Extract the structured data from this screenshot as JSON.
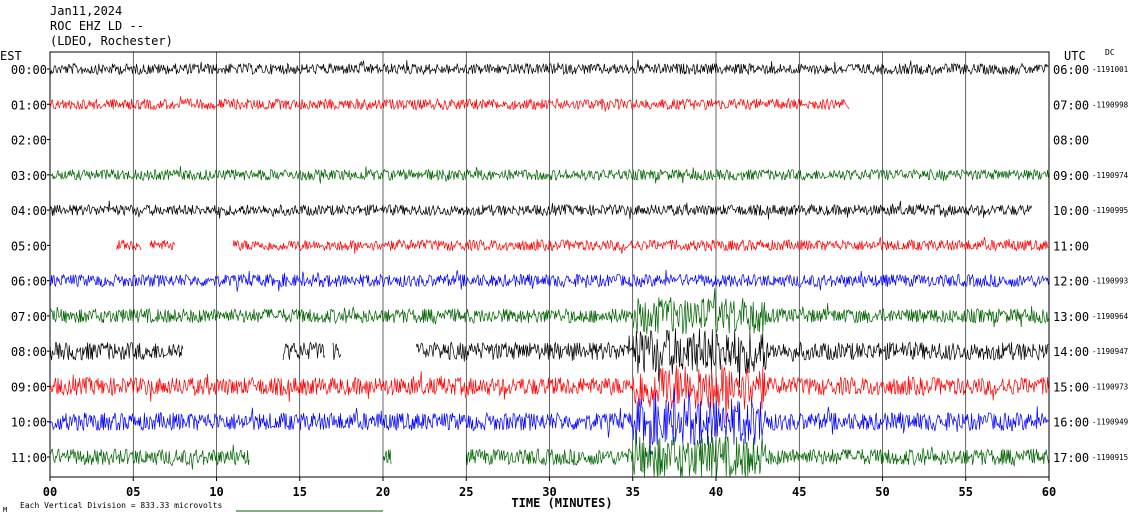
{
  "header": {
    "date": "Jan11,2024",
    "station": "ROC EHZ LD --",
    "network": "(LDEO, Rochester)"
  },
  "left_axis_label": "EST",
  "right_axis_label": "UTC",
  "dc_label": "DC",
  "x_axis_title": "TIME (MINUTES)",
  "footnote": "Each Vertical Division = 833.33 microvolts",
  "footnote_mark": "M",
  "chart_data": {
    "type": "line",
    "title": "ROC EHZ LD --",
    "xlabel": "TIME (MINUTES)",
    "xlim": [
      0,
      60
    ],
    "x_ticks": [
      "00",
      "05",
      "10",
      "15",
      "20",
      "25",
      "30",
      "35",
      "40",
      "45",
      "50",
      "55",
      "60"
    ],
    "grid": true,
    "colors": {
      "black": "#000000",
      "red": "#ff0000",
      "blue": "#0000ff",
      "green": "#006400"
    },
    "rows": [
      {
        "est": "00:00",
        "utc": "06:00",
        "dc": "1191001",
        "color": "black",
        "amp": 0.6,
        "segments": [
          [
            0,
            60
          ]
        ]
      },
      {
        "est": "01:00",
        "utc": "07:00",
        "dc": "1190998",
        "color": "red",
        "amp": 0.6,
        "segments": [
          [
            0,
            48
          ]
        ]
      },
      {
        "est": "02:00",
        "utc": "08:00",
        "dc": "",
        "color": "green",
        "amp": 0,
        "segments": []
      },
      {
        "est": "03:00",
        "utc": "09:00",
        "dc": "1190974",
        "color": "green",
        "amp": 0.6,
        "segments": [
          [
            0,
            60
          ]
        ]
      },
      {
        "est": "04:00",
        "utc": "10:00",
        "dc": "1190995",
        "color": "black",
        "amp": 0.6,
        "segments": [
          [
            0,
            59
          ]
        ]
      },
      {
        "est": "05:00",
        "utc": "11:00",
        "dc": "",
        "color": "red",
        "amp": 0.6,
        "segments": [
          [
            4,
            5.5
          ],
          [
            6,
            7.5
          ],
          [
            11,
            60
          ]
        ]
      },
      {
        "est": "06:00",
        "utc": "12:00",
        "dc": "1190993",
        "color": "blue",
        "amp": 0.7,
        "segments": [
          [
            0,
            60
          ]
        ]
      },
      {
        "est": "07:00",
        "utc": "13:00",
        "dc": "1190964",
        "color": "green",
        "amp": 0.8,
        "segments": [
          [
            0,
            60
          ]
        ]
      },
      {
        "est": "08:00",
        "utc": "14:00",
        "dc": "1190947",
        "color": "black",
        "amp": 1.0,
        "segments": [
          [
            0,
            8
          ],
          [
            14,
            16.5
          ],
          [
            17,
            17.5
          ],
          [
            22,
            60
          ]
        ]
      },
      {
        "est": "09:00",
        "utc": "15:00",
        "dc": "1190973",
        "color": "red",
        "amp": 1.0,
        "segments": [
          [
            0,
            60
          ]
        ]
      },
      {
        "est": "10:00",
        "utc": "16:00",
        "dc": "1190949",
        "color": "blue",
        "amp": 1.0,
        "segments": [
          [
            0,
            60
          ]
        ]
      },
      {
        "est": "11:00",
        "utc": "17:00",
        "dc": "1190915",
        "color": "green",
        "amp": 0.9,
        "segments": [
          [
            0,
            12
          ],
          [
            20,
            20.5
          ],
          [
            25,
            60
          ]
        ]
      }
    ],
    "event_window_minutes": [
      35,
      43
    ]
  }
}
